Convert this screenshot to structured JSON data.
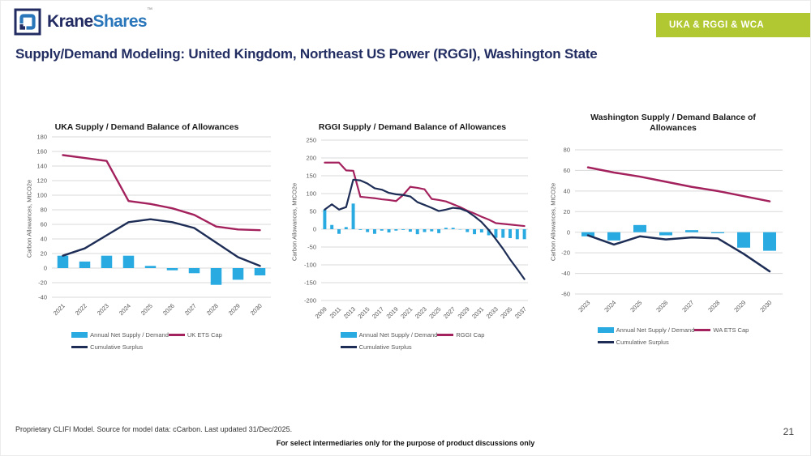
{
  "header": {
    "logo": {
      "krane": "Krane",
      "shares": "Shares",
      "tm": "™"
    },
    "badge": "UKA & RGGI & WCA",
    "title": "Supply/Demand Modeling: United Kingdom, Northeast US Power (RGGI), Washington State"
  },
  "colors": {
    "bar_blue": "#29abe2",
    "cap_crimson": "#a3215c",
    "surplus_navy": "#1d2d56",
    "badge_green": "#b2c832",
    "brand_navy": "#232c62",
    "brand_blue": "#2a76ba"
  },
  "chart_data": [
    {
      "type": "bar",
      "title": "UKA Supply / Demand Balance of Allowances",
      "ylabel": "Carbon Allowances, MtCO2e",
      "ylim": [
        -40,
        180
      ],
      "ystep": 20,
      "grid": true,
      "legend_position": "bottom",
      "categories": [
        "2021",
        "2022",
        "2023",
        "2024",
        "2025",
        "2026",
        "2027",
        "2028",
        "2029",
        "2030"
      ],
      "xtick_every": 1,
      "bars": {
        "name": "Annual Net Supply / Demand",
        "color": "#29abe2",
        "values": [
          17,
          9,
          17,
          17,
          3,
          -3,
          -7,
          -23,
          -16,
          -10
        ]
      },
      "lines": [
        {
          "name": "UK ETS Cap",
          "color": "#a3215c",
          "values": [
            155,
            151,
            147,
            92,
            88,
            82,
            73,
            57,
            53,
            52
          ]
        },
        {
          "name": "Cumulative Surplus",
          "color": "#1d2d56",
          "values": [
            17,
            27,
            45,
            63,
            67,
            63,
            55,
            35,
            15,
            3
          ]
        }
      ]
    },
    {
      "type": "bar",
      "title": "RGGI Supply / Demand  Balance of Allowances",
      "ylabel": "Carbon Allowances, MtCO2e",
      "ylim": [
        -200,
        250
      ],
      "ystep": 50,
      "grid": true,
      "legend_position": "bottom",
      "categories": [
        "2009",
        "2010",
        "2011",
        "2012",
        "2013",
        "2014",
        "2015",
        "2016",
        "2017",
        "2018",
        "2019",
        "2020",
        "2021",
        "2022",
        "2023",
        "2024",
        "2025",
        "2026",
        "2027",
        "2028",
        "2029",
        "2030",
        "2031",
        "2032",
        "2033",
        "2034",
        "2035",
        "2036",
        "2037"
      ],
      "xtick_every": 2,
      "bars": {
        "name": "Annual Net Supply / Demand",
        "color": "#29abe2",
        "values": [
          55,
          12,
          -13,
          6,
          72,
          -2,
          -8,
          -13,
          -4,
          -9,
          -4,
          -2,
          -7,
          -14,
          -8,
          -6,
          -11,
          4,
          4,
          -1,
          -8,
          -14,
          -9,
          -17,
          -24,
          -24,
          -25,
          -28,
          -28
        ]
      },
      "lines": [
        {
          "name": "RGGI Cap",
          "color": "#a3215c",
          "values": [
            187,
            187,
            187,
            165,
            164,
            91,
            89,
            87,
            84,
            82,
            79,
            96,
            119,
            116,
            112,
            85,
            82,
            78,
            70,
            62,
            52,
            44,
            35,
            27,
            17,
            15,
            13,
            11,
            9
          ]
        },
        {
          "name": "Cumulative Surplus",
          "color": "#1d2d56",
          "values": [
            55,
            70,
            55,
            62,
            139,
            137,
            128,
            115,
            111,
            102,
            98,
            96,
            92,
            76,
            68,
            60,
            51,
            55,
            60,
            58,
            50,
            36,
            20,
            -2,
            -28,
            -55,
            -85,
            -112,
            -140
          ]
        }
      ]
    },
    {
      "type": "bar",
      "title": "Washington Supply / Demand Balance of Allowances",
      "ylabel": "Carbon Allowances, MtCO2e",
      "ylim": [
        -60,
        80
      ],
      "ystep": 20,
      "grid": true,
      "legend_position": "bottom",
      "categories": [
        "2023",
        "2024",
        "2025",
        "2026",
        "2027",
        "2028",
        "2029",
        "2030"
      ],
      "xtick_every": 1,
      "bars": {
        "name": "Annual Net Supply / Demand",
        "color": "#29abe2",
        "values": [
          -4,
          -8,
          7,
          -3,
          2,
          -1,
          -15,
          -18
        ]
      },
      "lines": [
        {
          "name": "WA ETS Cap",
          "color": "#a3215c",
          "values": [
            63,
            58,
            54,
            49,
            44,
            40,
            35,
            30
          ]
        },
        {
          "name": "Cumulative Surplus",
          "color": "#1d2d56",
          "values": [
            -3,
            -12,
            -4,
            -7,
            -5,
            -6,
            -21,
            -38
          ]
        }
      ]
    }
  ],
  "footer": {
    "source": "Proprietary CLIFI Model. Source for model data: cCarbon. Last updated 31/Dec/2025.",
    "disclaimer": "For select intermediaries only for the purpose of product discussions only",
    "page_number": "21"
  }
}
